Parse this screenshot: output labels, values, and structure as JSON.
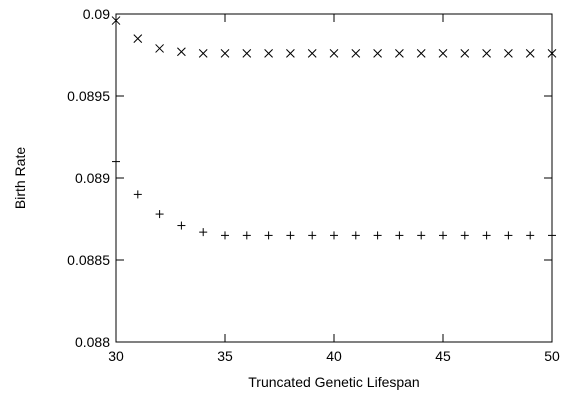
{
  "chart_data": {
    "type": "scatter",
    "title": "",
    "xlabel": "Truncated Genetic Lifespan",
    "ylabel": "Birth Rate",
    "xlim": [
      30,
      50
    ],
    "ylim": [
      0.088,
      0.09
    ],
    "x_ticks": [
      30,
      35,
      40,
      45,
      50
    ],
    "x_tick_labels": [
      "30",
      "35",
      "40",
      "45",
      "50"
    ],
    "y_ticks": [
      0.088,
      0.0885,
      0.089,
      0.0895,
      0.09
    ],
    "y_tick_labels": [
      "0.088",
      "0.0885",
      "0.089",
      "0.0895",
      "0.09"
    ],
    "grid": false,
    "legend": "none",
    "colors": {
      "marker": "#000000",
      "axis": "#000000"
    },
    "series": [
      {
        "marker": "x",
        "x": [
          30,
          31,
          32,
          33,
          34,
          35,
          36,
          37,
          38,
          39,
          40,
          41,
          42,
          43,
          44,
          45,
          46,
          47,
          48,
          49,
          50
        ],
        "y": [
          0.08996,
          0.08985,
          0.08979,
          0.08977,
          0.08976,
          0.08976,
          0.08976,
          0.08976,
          0.08976,
          0.08976,
          0.08976,
          0.08976,
          0.08976,
          0.08976,
          0.08976,
          0.08976,
          0.08976,
          0.08976,
          0.08976,
          0.08976,
          0.08976
        ]
      },
      {
        "marker": "+",
        "x": [
          30,
          31,
          32,
          33,
          34,
          35,
          36,
          37,
          38,
          39,
          40,
          41,
          42,
          43,
          44,
          45,
          46,
          47,
          48,
          49,
          50
        ],
        "y": [
          0.0891,
          0.0889,
          0.08878,
          0.08871,
          0.08867,
          0.08865,
          0.08865,
          0.08865,
          0.08865,
          0.08865,
          0.08865,
          0.08865,
          0.08865,
          0.08865,
          0.08865,
          0.08865,
          0.08865,
          0.08865,
          0.08865,
          0.08865,
          0.08865
        ]
      }
    ]
  }
}
